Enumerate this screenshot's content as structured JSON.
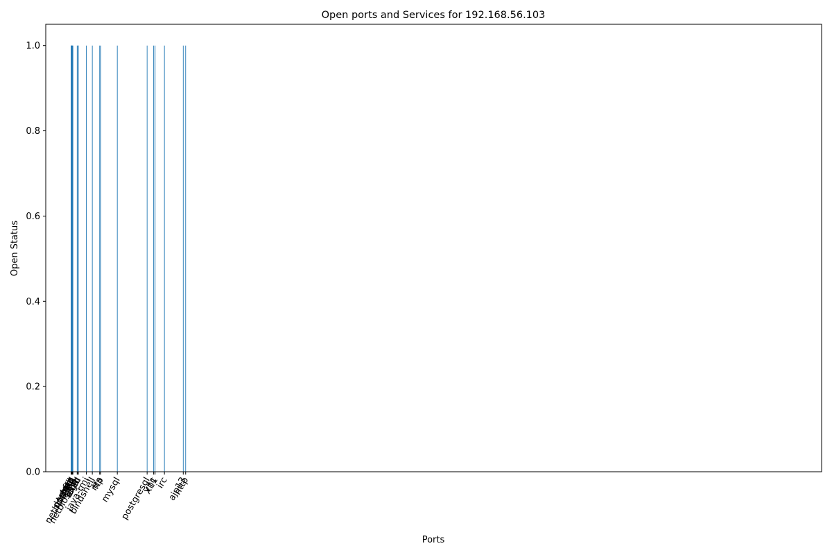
{
  "chart_data": {
    "type": "bar",
    "title": "Open ports and Services for 192.168.56.103",
    "xlabel": "Ports",
    "ylabel": "Open Status",
    "x_range": [
      -1795.9,
      53533.35
    ],
    "ylim": [
      0,
      1.05
    ],
    "y_ticks": [
      0.0,
      0.2,
      0.4,
      0.6,
      0.8,
      1.0
    ],
    "y_tick_labels": [
      "0.0",
      "0.2",
      "0.4",
      "0.6",
      "0.8",
      "1.0"
    ],
    "bar_color": "#1f77b4",
    "points": [
      {
        "port": 21,
        "service": "ftp",
        "value": 1
      },
      {
        "port": 22,
        "service": "ssh",
        "value": 1
      },
      {
        "port": 23,
        "service": "telnet",
        "value": 1
      },
      {
        "port": 25,
        "service": "smtp",
        "value": 1
      },
      {
        "port": 53,
        "service": "domain",
        "value": 1
      },
      {
        "port": 80,
        "service": "http",
        "value": 1
      },
      {
        "port": 111,
        "service": "rpcbind",
        "value": 1
      },
      {
        "port": 139,
        "service": "netbios-ssn",
        "value": 1
      },
      {
        "port": 445,
        "service": "netbios-ssn",
        "value": 1
      },
      {
        "port": 512,
        "service": "exec",
        "value": 1
      },
      {
        "port": 513,
        "service": "login",
        "value": 1
      },
      {
        "port": 514,
        "service": "shell",
        "value": 1
      },
      {
        "port": 1099,
        "service": "java-rmi",
        "value": 1
      },
      {
        "port": 1524,
        "service": "bindshell",
        "value": 1
      },
      {
        "port": 2049,
        "service": "nfs",
        "value": 1
      },
      {
        "port": 2121,
        "service": "ftp",
        "value": 1
      },
      {
        "port": 3306,
        "service": "mysql",
        "value": 1
      },
      {
        "port": 5432,
        "service": "postgresql",
        "value": 1
      },
      {
        "port": 5900,
        "service": "vnc",
        "value": 1
      },
      {
        "port": 6000,
        "service": "X11",
        "value": 1
      },
      {
        "port": 6667,
        "service": "irc",
        "value": 1
      },
      {
        "port": 8009,
        "service": "ajp13",
        "value": 1
      },
      {
        "port": 8180,
        "service": "http",
        "value": 1
      }
    ]
  }
}
